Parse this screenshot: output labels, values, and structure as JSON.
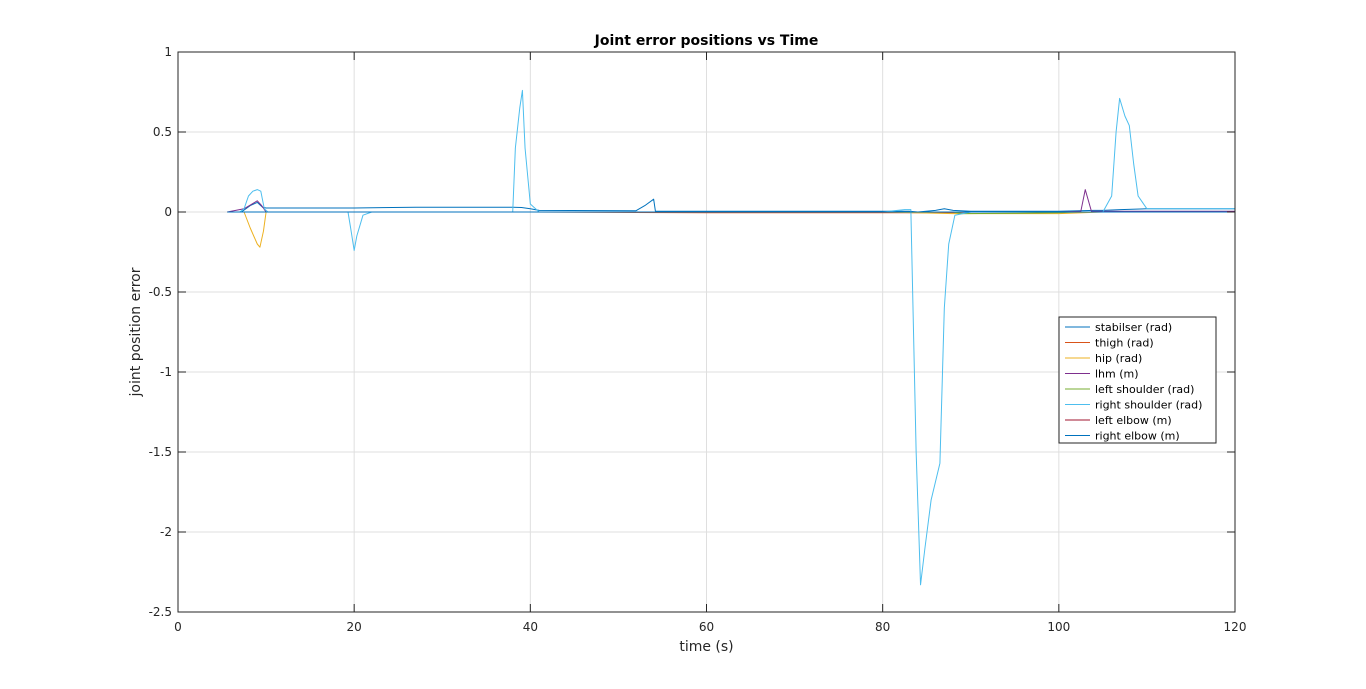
{
  "chart_data": {
    "type": "line",
    "title": "Joint error positions vs Time",
    "xlabel": "time (s)",
    "ylabel": "joint position error",
    "xlim": [
      0,
      120
    ],
    "ylim": [
      -2.5,
      1
    ],
    "xticks": [
      0,
      20,
      40,
      60,
      80,
      100,
      120
    ],
    "yticks": [
      1,
      0.5,
      0,
      -0.5,
      -1,
      -1.5,
      -2,
      -2.5
    ],
    "xtick_labels": [
      "0",
      "20",
      "40",
      "60",
      "80",
      "100",
      "120"
    ],
    "ytick_labels": [
      "1",
      "0.5",
      "0",
      "-0.5",
      "-1",
      "-1.5",
      "-2",
      "-2.5"
    ],
    "grid": true,
    "legend_position": "right",
    "series": [
      {
        "name": "stabilser (rad)",
        "color": "#0072BD",
        "points": [
          [
            5.6,
            0
          ],
          [
            7.2,
            0
          ],
          [
            8.2,
            0.04
          ],
          [
            9,
            0.06
          ],
          [
            9.6,
            0.03
          ],
          [
            10,
            0.025
          ],
          [
            20,
            0.025
          ],
          [
            27,
            0.03
          ],
          [
            38,
            0.03
          ],
          [
            39,
            0.028
          ],
          [
            40,
            0.02
          ],
          [
            41,
            0.01
          ],
          [
            52,
            0.008
          ],
          [
            53,
            0.04
          ],
          [
            54,
            0.08
          ],
          [
            54.2,
            0.005
          ],
          [
            60,
            0.005
          ],
          [
            70,
            0.005
          ],
          [
            80,
            0.005
          ],
          [
            83,
            0.005
          ],
          [
            84,
            0
          ],
          [
            86,
            0.01
          ],
          [
            87,
            0.02
          ],
          [
            88,
            0.01
          ],
          [
            90,
            0.005
          ],
          [
            100,
            0.005
          ],
          [
            104,
            0.01
          ],
          [
            105,
            0.01
          ],
          [
            107,
            0.015
          ],
          [
            110,
            0.02
          ],
          [
            120,
            0.02
          ]
        ]
      },
      {
        "name": "thigh (rad)",
        "color": "#D95319",
        "points": [
          [
            5.6,
            0
          ],
          [
            10,
            0
          ],
          [
            40,
            0
          ],
          [
            60,
            -0.005
          ],
          [
            80,
            -0.005
          ],
          [
            88,
            -0.005
          ],
          [
            90,
            0
          ],
          [
            100,
            0
          ],
          [
            120,
            0
          ]
        ]
      },
      {
        "name": "hip (rad)",
        "color": "#EDB120",
        "points": [
          [
            5.6,
            0
          ],
          [
            7.5,
            0
          ],
          [
            8.2,
            -0.1
          ],
          [
            9,
            -0.2
          ],
          [
            9.3,
            -0.22
          ],
          [
            9.7,
            -0.12
          ],
          [
            10,
            0
          ],
          [
            20,
            0
          ],
          [
            40,
            0
          ],
          [
            80,
            0
          ],
          [
            88,
            -0.01
          ],
          [
            100,
            -0.01
          ],
          [
            105,
            0
          ],
          [
            120,
            0
          ]
        ]
      },
      {
        "name": "lhm (m)",
        "color": "#7E2F8E",
        "points": [
          [
            5.6,
            0
          ],
          [
            7.5,
            0.02
          ],
          [
            9,
            0.07
          ],
          [
            9.5,
            0.04
          ],
          [
            10,
            0
          ],
          [
            20,
            0
          ],
          [
            40,
            0
          ],
          [
            60,
            0
          ],
          [
            100,
            0
          ],
          [
            102.5,
            0.005
          ],
          [
            103,
            0.14
          ],
          [
            103.7,
            0.005
          ],
          [
            105,
            0.005
          ],
          [
            120,
            0.005
          ]
        ]
      },
      {
        "name": "left shoulder (rad)",
        "color": "#77AC30",
        "points": [
          [
            5.6,
            0
          ],
          [
            20,
            0
          ],
          [
            40,
            0
          ],
          [
            60,
            0
          ],
          [
            88,
            0
          ],
          [
            89,
            -0.01
          ],
          [
            95,
            -0.008
          ],
          [
            100,
            -0.005
          ],
          [
            102,
            0
          ],
          [
            120,
            0
          ]
        ]
      },
      {
        "name": "right shoulder (rad)",
        "color": "#4DBEEE",
        "points": [
          [
            5.6,
            0
          ],
          [
            7,
            0
          ],
          [
            7.5,
            0.02
          ],
          [
            8,
            0.1
          ],
          [
            8.5,
            0.13
          ],
          [
            9,
            0.14
          ],
          [
            9.4,
            0.13
          ],
          [
            9.8,
            0.02
          ],
          [
            10.2,
            0
          ],
          [
            19.3,
            0
          ],
          [
            19.6,
            -0.1
          ],
          [
            20,
            -0.24
          ],
          [
            20.3,
            -0.15
          ],
          [
            21,
            -0.02
          ],
          [
            22,
            0
          ],
          [
            38,
            0
          ],
          [
            38.3,
            0.4
          ],
          [
            38.8,
            0.65
          ],
          [
            39.1,
            0.76
          ],
          [
            39.4,
            0.4
          ],
          [
            40,
            0.05
          ],
          [
            41,
            0
          ],
          [
            80,
            0
          ],
          [
            82.5,
            0.015
          ],
          [
            83.2,
            0.015
          ],
          [
            83.8,
            -1.5
          ],
          [
            84.3,
            -2.33
          ],
          [
            84.8,
            -2.1
          ],
          [
            85.5,
            -1.8
          ],
          [
            86.5,
            -1.57
          ],
          [
            87,
            -0.6
          ],
          [
            87.5,
            -0.2
          ],
          [
            88.2,
            -0.02
          ],
          [
            90,
            0
          ],
          [
            105,
            0
          ],
          [
            106,
            0.1
          ],
          [
            106.5,
            0.5
          ],
          [
            106.9,
            0.71
          ],
          [
            107.5,
            0.6
          ],
          [
            108,
            0.54
          ],
          [
            108.5,
            0.3
          ],
          [
            109,
            0.1
          ],
          [
            110,
            0.02
          ],
          [
            120,
            0.02
          ]
        ]
      },
      {
        "name": "left elbow (m)",
        "color": "#A2142F",
        "points": [
          [
            5.6,
            0
          ],
          [
            20,
            0
          ],
          [
            40,
            0
          ],
          [
            60,
            0
          ],
          [
            80,
            0
          ],
          [
            100,
            0
          ],
          [
            120,
            0
          ]
        ]
      },
      {
        "name": "right elbow (m)",
        "color": "#0072BD",
        "points": [
          [
            5.6,
            0
          ],
          [
            20,
            0
          ],
          [
            40,
            0
          ],
          [
            60,
            0
          ],
          [
            80,
            0
          ],
          [
            100,
            0
          ],
          [
            120,
            0
          ]
        ]
      }
    ]
  }
}
